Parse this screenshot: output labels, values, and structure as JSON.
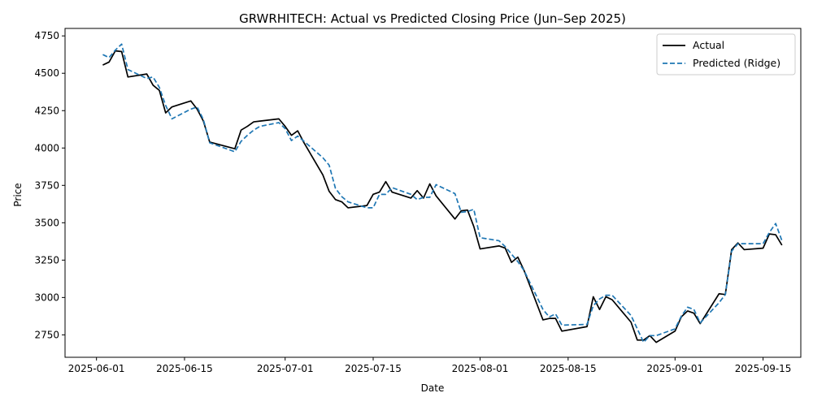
{
  "chart_data": {
    "type": "line",
    "title": "GRWRHITECH: Actual vs Predicted Closing Price (Jun–Sep 2025)",
    "xlabel": "Date",
    "ylabel": "Price",
    "xlim": [
      "2025-05-27",
      "2025-09-21"
    ],
    "ylim": [
      2600,
      4800
    ],
    "x_ticks": [
      "2025-06-01",
      "2025-06-15",
      "2025-07-01",
      "2025-07-15",
      "2025-08-01",
      "2025-08-15",
      "2025-09-01",
      "2025-09-15"
    ],
    "y_ticks": [
      2750,
      3000,
      3250,
      3500,
      3750,
      4000,
      4250,
      4500,
      4750
    ],
    "grid": false,
    "legend_position": "top-right",
    "x": [
      "2025-06-02",
      "2025-06-03",
      "2025-06-04",
      "2025-06-05",
      "2025-06-06",
      "2025-06-09",
      "2025-06-10",
      "2025-06-11",
      "2025-06-12",
      "2025-06-13",
      "2025-06-16",
      "2025-06-17",
      "2025-06-18",
      "2025-06-19",
      "2025-06-23",
      "2025-06-24",
      "2025-06-25",
      "2025-06-26",
      "2025-06-27",
      "2025-06-30",
      "2025-07-01",
      "2025-07-02",
      "2025-07-03",
      "2025-07-04",
      "2025-07-07",
      "2025-07-08",
      "2025-07-09",
      "2025-07-10",
      "2025-07-11",
      "2025-07-14",
      "2025-07-15",
      "2025-07-16",
      "2025-07-17",
      "2025-07-18",
      "2025-07-21",
      "2025-07-22",
      "2025-07-23",
      "2025-07-24",
      "2025-07-25",
      "2025-07-28",
      "2025-07-29",
      "2025-07-30",
      "2025-07-31",
      "2025-08-01",
      "2025-08-04",
      "2025-08-05",
      "2025-08-06",
      "2025-08-07",
      "2025-08-08",
      "2025-08-11",
      "2025-08-12",
      "2025-08-13",
      "2025-08-14",
      "2025-08-18",
      "2025-08-19",
      "2025-08-20",
      "2025-08-21",
      "2025-08-22",
      "2025-08-25",
      "2025-08-26",
      "2025-08-27",
      "2025-08-28",
      "2025-08-29",
      "2025-09-01",
      "2025-09-02",
      "2025-09-03",
      "2025-09-04",
      "2025-09-05",
      "2025-09-08",
      "2025-09-09",
      "2025-09-10",
      "2025-09-11",
      "2025-09-12",
      "2025-09-15",
      "2025-09-16",
      "2025-09-17",
      "2025-09-18"
    ],
    "series": [
      {
        "name": "Actual",
        "color": "#000000",
        "style": "solid",
        "values": [
          4555,
          4575,
          4650,
          4645,
          4475,
          4495,
          4420,
          4385,
          4235,
          4275,
          4315,
          4260,
          4180,
          4040,
          3995,
          4120,
          4145,
          4175,
          4180,
          4195,
          4145,
          4085,
          4115,
          4035,
          3820,
          3710,
          3655,
          3640,
          3600,
          3615,
          3690,
          3705,
          3775,
          3705,
          3665,
          3715,
          3665,
          3760,
          3680,
          3525,
          3580,
          3585,
          3475,
          3325,
          3345,
          3330,
          3235,
          3270,
          3180,
          2850,
          2860,
          2860,
          2775,
          2805,
          3005,
          2920,
          3005,
          2985,
          2835,
          2715,
          2715,
          2745,
          2700,
          2775,
          2870,
          2910,
          2895,
          2825,
          3025,
          3020,
          3320,
          3365,
          3320,
          3330,
          3425,
          3420,
          3350
        ]
      },
      {
        "name": "Predicted (Ridge)",
        "color": "#1f77b4",
        "style": "dashed",
        "values": [
          4625,
          4605,
          4655,
          4695,
          4525,
          4465,
          4475,
          4405,
          4285,
          4195,
          4260,
          4275,
          4190,
          4035,
          3975,
          4045,
          4085,
          4120,
          4145,
          4170,
          4130,
          4050,
          4080,
          4045,
          3935,
          3885,
          3730,
          3675,
          3640,
          3600,
          3600,
          3690,
          3690,
          3735,
          3690,
          3655,
          3670,
          3670,
          3755,
          3695,
          3570,
          3575,
          3590,
          3400,
          3380,
          3340,
          3290,
          3240,
          3180,
          2920,
          2870,
          2890,
          2815,
          2820,
          2945,
          2990,
          3015,
          3015,
          2880,
          2790,
          2700,
          2745,
          2745,
          2790,
          2875,
          2935,
          2920,
          2830,
          2965,
          3020,
          3310,
          3360,
          3360,
          3360,
          3435,
          3495,
          3380
        ]
      }
    ]
  }
}
